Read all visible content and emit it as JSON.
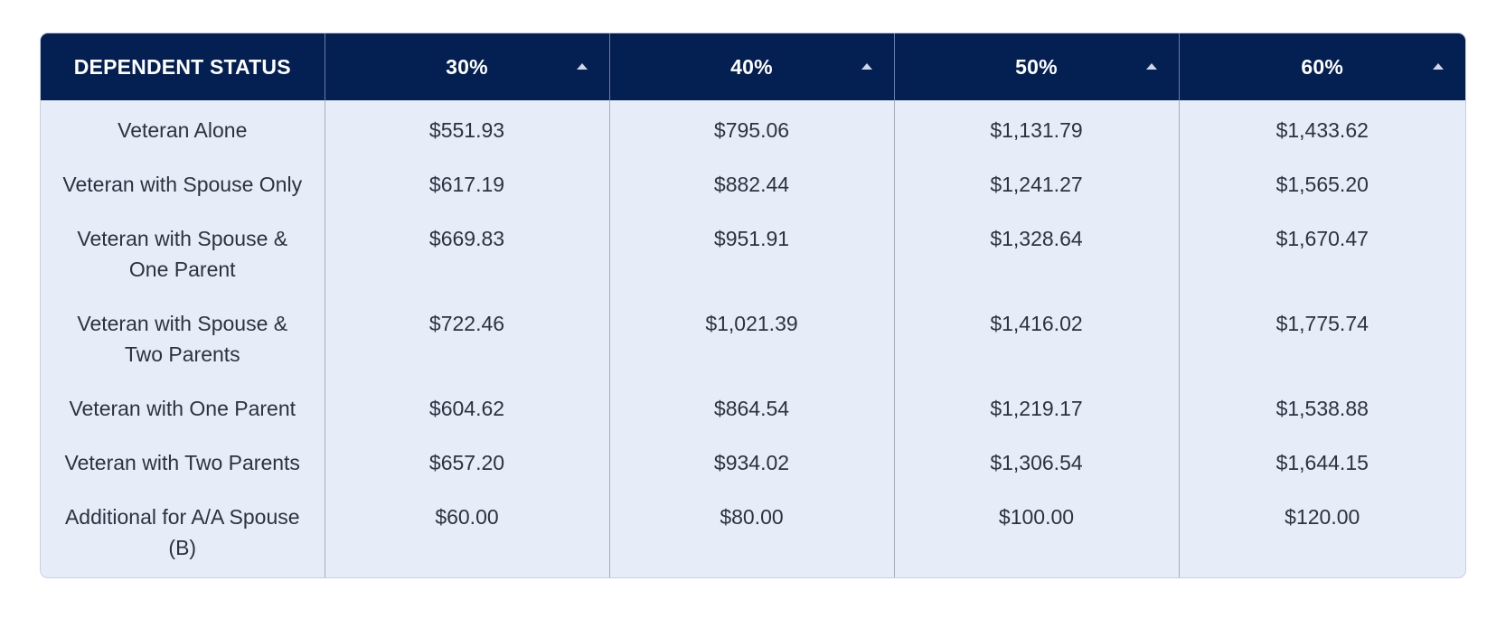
{
  "table": {
    "columns": [
      {
        "label": "DEPENDENT STATUS",
        "sortable": false
      },
      {
        "label": "30%",
        "sortable": true
      },
      {
        "label": "40%",
        "sortable": true
      },
      {
        "label": "50%",
        "sortable": true
      },
      {
        "label": "60%",
        "sortable": true
      }
    ],
    "rows": [
      {
        "status": "Veteran Alone",
        "values": [
          "$551.93",
          "$795.06",
          "$1,131.79",
          "$1,433.62"
        ]
      },
      {
        "status": "Veteran with Spouse Only",
        "values": [
          "$617.19",
          "$882.44",
          "$1,241.27",
          "$1,565.20"
        ]
      },
      {
        "status": "Veteran with Spouse & One Parent",
        "values": [
          "$669.83",
          "$951.91",
          "$1,328.64",
          "$1,670.47"
        ]
      },
      {
        "status": "Veteran with Spouse & Two Parents",
        "values": [
          "$722.46",
          "$1,021.39",
          "$1,416.02",
          "$1,775.74"
        ]
      },
      {
        "status": "Veteran with One Parent",
        "values": [
          "$604.62",
          "$864.54",
          "$1,219.17",
          "$1,538.88"
        ]
      },
      {
        "status": "Veteran with Two Parents",
        "values": [
          "$657.20",
          "$934.02",
          "$1,306.54",
          "$1,644.15"
        ]
      },
      {
        "status": "Additional for A/A Spouse (B)",
        "values": [
          "$60.00",
          "$80.00",
          "$100.00",
          "$120.00"
        ]
      }
    ]
  },
  "colors": {
    "header_bg": "#041f52",
    "header_text": "#ffffff",
    "body_bg": "#e6ecf8",
    "body_text": "#2d3240"
  },
  "icons": {
    "sort": "sort-ascending-icon"
  }
}
